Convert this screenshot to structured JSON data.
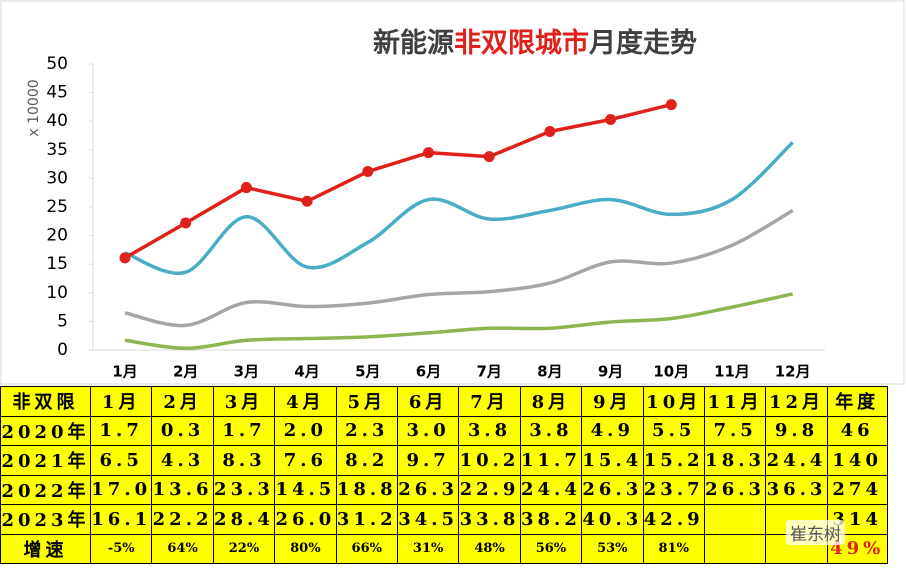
{
  "chart_data": {
    "type": "line",
    "title_parts": [
      "新能源",
      "非双限城市",
      "月度走势"
    ],
    "title_colors": [
      "#404040",
      "#e0201b",
      "#404040"
    ],
    "y_axis_label": "x 10000",
    "categories": [
      "1月",
      "2月",
      "3月",
      "4月",
      "5月",
      "6月",
      "7月",
      "8月",
      "9月",
      "10月",
      "11月",
      "12月"
    ],
    "ylim": [
      0,
      50
    ],
    "yticks": [
      0,
      5,
      10,
      15,
      20,
      25,
      30,
      35,
      40,
      45,
      50
    ],
    "series": [
      {
        "name": "2020年",
        "color": "#8db554",
        "smooth": true,
        "values": [
          1.7,
          0.3,
          1.7,
          2.0,
          2.3,
          3.0,
          3.8,
          3.8,
          4.9,
          5.5,
          7.5,
          9.8
        ]
      },
      {
        "name": "2021年",
        "color": "#a6a6a6",
        "smooth": true,
        "values": [
          6.5,
          4.3,
          8.3,
          7.6,
          8.2,
          9.7,
          10.2,
          11.7,
          15.4,
          15.2,
          18.3,
          24.4
        ]
      },
      {
        "name": "2022年",
        "color": "#4bacc6",
        "smooth": true,
        "values": [
          17.0,
          13.6,
          23.3,
          14.5,
          18.8,
          26.3,
          22.9,
          24.4,
          26.3,
          23.7,
          26.3,
          36.3
        ]
      },
      {
        "name": "2023年",
        "color": "#e0201b",
        "smooth": false,
        "markers": true,
        "values": [
          16.1,
          22.2,
          28.4,
          26.0,
          31.2,
          34.5,
          33.8,
          38.2,
          40.3,
          42.9,
          null,
          null
        ]
      }
    ]
  },
  "table": {
    "header": [
      "非双限",
      "1月",
      "2月",
      "3月",
      "4月",
      "5月",
      "6月",
      "7月",
      "8月",
      "9月",
      "10月",
      "11月",
      "12月",
      "年度"
    ],
    "rows": [
      {
        "label": "2020年",
        "cells": [
          "1.7",
          "0.3",
          "1.7",
          "2.0",
          "2.3",
          "3.0",
          "3.8",
          "3.8",
          "4.9",
          "5.5",
          "7.5",
          "9.8"
        ],
        "total": "46"
      },
      {
        "label": "2021年",
        "cells": [
          "6.5",
          "4.3",
          "8.3",
          "7.6",
          "8.2",
          "9.7",
          "10.2",
          "11.7",
          "15.4",
          "15.2",
          "18.3",
          "24.4"
        ],
        "total": "140"
      },
      {
        "label": "2022年",
        "cells": [
          "17.0",
          "13.6",
          "23.3",
          "14.5",
          "18.8",
          "26.3",
          "22.9",
          "24.4",
          "26.3",
          "23.7",
          "26.3",
          "36.3"
        ],
        "total": "274"
      },
      {
        "label": "2023年",
        "cells": [
          "16.1",
          "22.2",
          "28.4",
          "26.0",
          "31.2",
          "34.5",
          "33.8",
          "38.2",
          "40.3",
          "42.9"
        ],
        "total": "314"
      },
      {
        "label": "增速",
        "cells": [
          "-5%",
          "64%",
          "22%",
          "80%",
          "66%",
          "31%",
          "48%",
          "56%",
          "53%",
          "81%"
        ],
        "total": "49%",
        "total_color": "#e0201b",
        "small": true
      }
    ],
    "watermark": "崔东树"
  }
}
